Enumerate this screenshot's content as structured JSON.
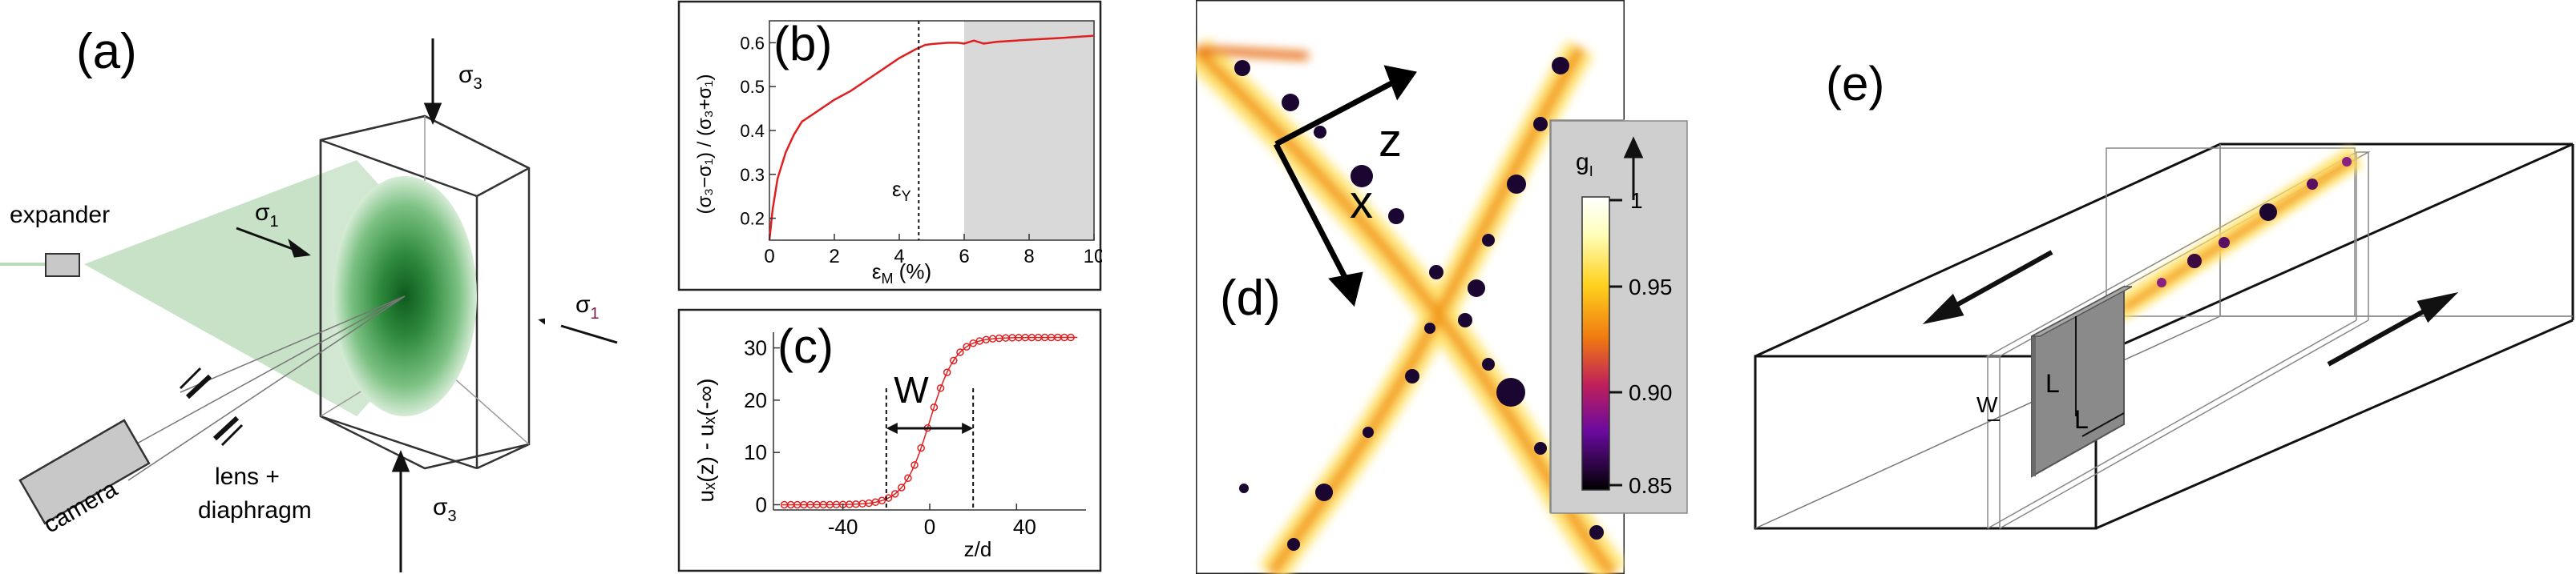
{
  "panel_a": {
    "label": "(a)",
    "expander": "expander",
    "camera": "camera",
    "lens": "lens +",
    "diaphragm": "diaphragm",
    "sigma_main": "σ",
    "sub1": "1",
    "sub3": "3"
  },
  "panel_b": {
    "label": "(b)",
    "ylabel": "(σ₃−σ₁) / (σ₃+σ₁)",
    "xlabel_main": "ε",
    "xlabel_sub": "M",
    "xlabel_unit": " (%)",
    "eps_y_main": "ε",
    "eps_y_sub": "Y",
    "xticks": [
      "0",
      "2",
      "4",
      "6",
      "8",
      "10"
    ],
    "yticks": [
      "0.2",
      "0.3",
      "0.4",
      "0.5",
      "0.6"
    ]
  },
  "panel_c": {
    "label": "(c)",
    "ylabel": "uₓ(z) - uₓ(-∞)",
    "xlabel": "z/d",
    "w": "W",
    "xticks": [
      "-40",
      "0",
      "40"
    ],
    "yticks": [
      "0",
      "10",
      "20",
      "30"
    ]
  },
  "panel_d": {
    "label": "(d)",
    "z": "z",
    "x": "x",
    "cb_title_main": "g",
    "cb_title_sub": "I",
    "cb_ticks": [
      "1",
      "0.95",
      "0.90",
      "0.85"
    ]
  },
  "panel_e": {
    "label": "(e)",
    "w": "W",
    "l1": "L",
    "l2": "L"
  },
  "colors": {
    "red_curve": "#e02020",
    "green_beam": "#b9dbb9",
    "green_spot": "#1f7a2c",
    "grey_region": "#d9d9d9",
    "colorbar_bg": "#cfcfcf",
    "block": "#8a8a8a"
  },
  "chart_data": [
    {
      "type": "line",
      "panel": "b",
      "xlim": [
        0,
        10
      ],
      "ylim": [
        0.15,
        0.65
      ],
      "x": [
        0,
        0.1,
        0.25,
        0.5,
        0.75,
        1,
        1.5,
        2,
        2.5,
        3,
        3.5,
        4,
        4.5,
        4.8,
        5,
        5.5,
        5.8,
        6,
        6.3,
        6.6,
        7,
        8,
        9,
        10
      ],
      "y": [
        0.15,
        0.22,
        0.29,
        0.35,
        0.39,
        0.42,
        0.445,
        0.47,
        0.49,
        0.515,
        0.54,
        0.565,
        0.585,
        0.595,
        0.597,
        0.6,
        0.6,
        0.598,
        0.605,
        0.598,
        0.602,
        0.607,
        0.611,
        0.616
      ],
      "vline_x": 4.6,
      "shaded_from_x": 6,
      "grid": false
    },
    {
      "type": "scatter",
      "panel": "c",
      "xlim": [
        -72,
        72
      ],
      "ylim": [
        -1,
        33
      ],
      "step_center": 0,
      "step_width": 6,
      "amplitude": 32,
      "x": [
        -67,
        -64,
        -61,
        -58,
        -55,
        -52,
        -49,
        -46,
        -43,
        -40,
        -37,
        -34,
        -31,
        -28,
        -25,
        -22,
        -19,
        -16,
        -13,
        -10,
        -7,
        -4,
        -1,
        2,
        5,
        8,
        11,
        14,
        17,
        20,
        23,
        26,
        29,
        32,
        35,
        38,
        41,
        44,
        47,
        50,
        53,
        56,
        59,
        62,
        65
      ],
      "vlines": [
        -20,
        20
      ],
      "grid": false
    }
  ]
}
